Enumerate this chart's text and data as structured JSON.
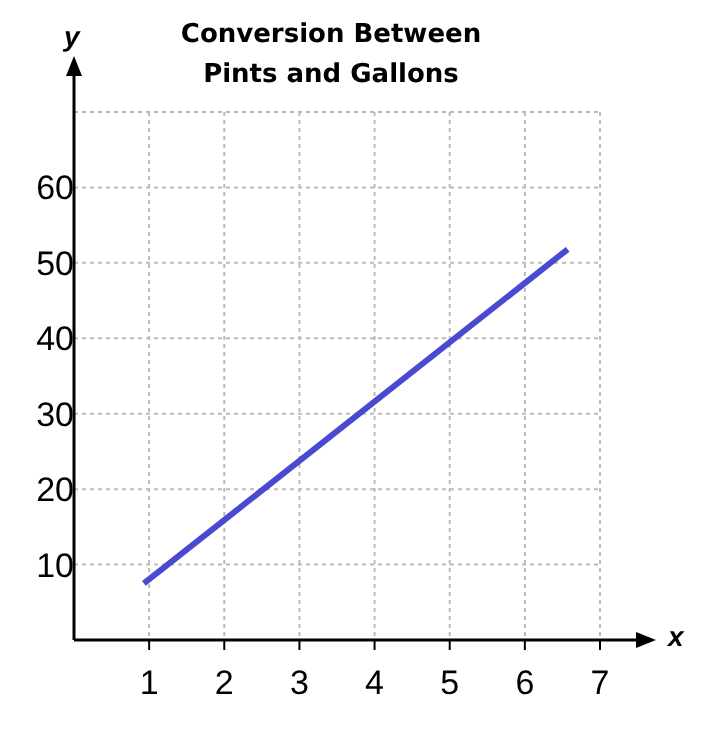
{
  "chart_data": {
    "type": "line",
    "title": "Conversion Between Pints and Gallons",
    "xlabel": "x",
    "ylabel": "y",
    "x": [
      0.93,
      6.57
    ],
    "series": [
      {
        "color": "#4a4ad0",
        "values": [
          7.5,
          51.8
        ]
      }
    ],
    "xlim": [
      0,
      7
    ],
    "xticks": [
      1,
      2,
      3,
      4,
      5,
      6,
      7
    ],
    "ylim": [
      0,
      70
    ],
    "yticks": [
      10,
      20,
      30,
      40,
      50,
      60,
      {
        "value": 70,
        "label": null
      }
    ],
    "grid": true,
    "marker": "none",
    "line_style": "solid"
  }
}
